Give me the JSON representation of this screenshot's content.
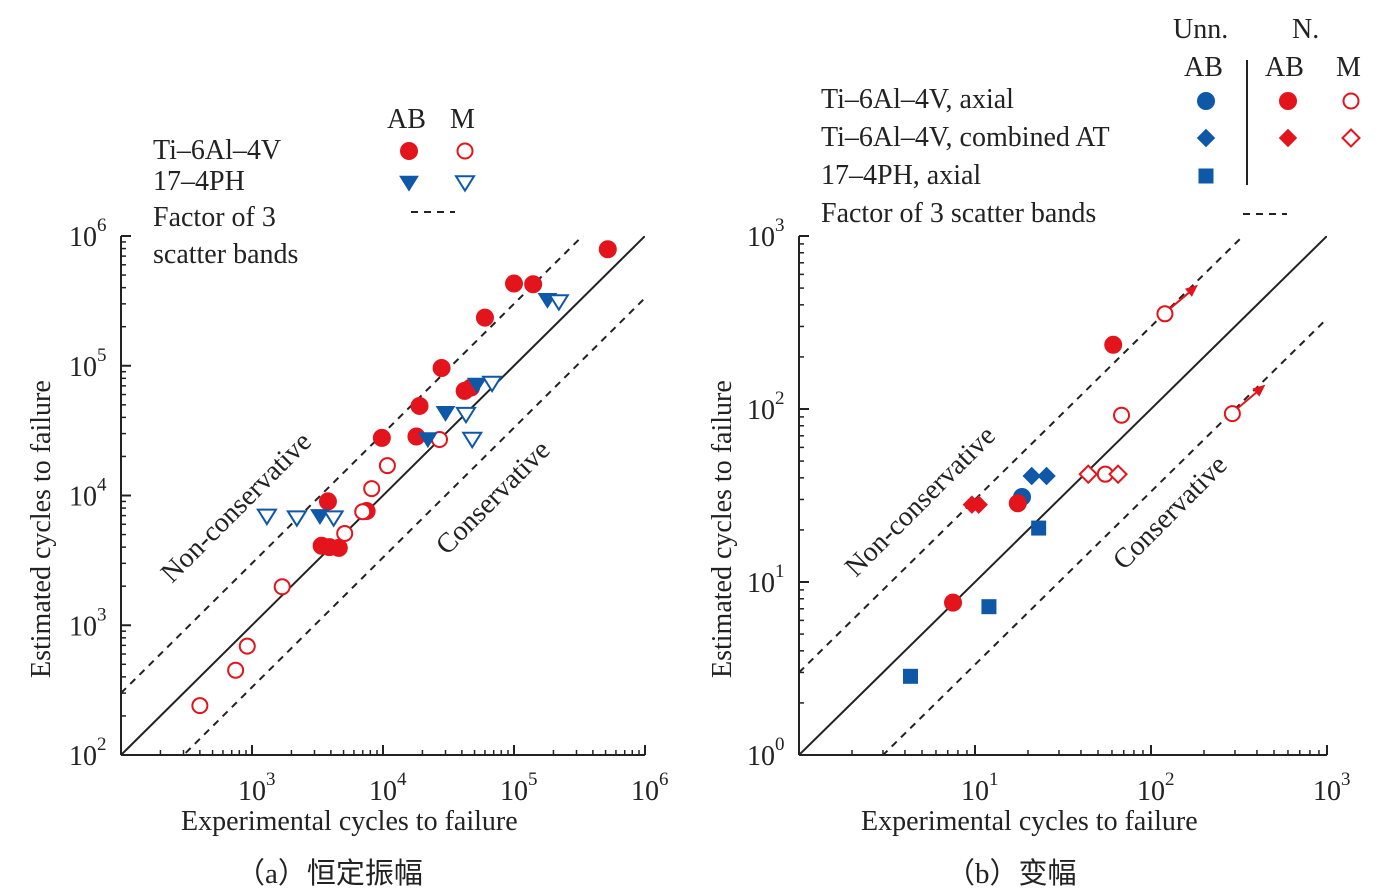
{
  "colors": {
    "red": "#e3141c",
    "blue": "#0f58a8",
    "black": "#222222"
  },
  "chart_data": [
    {
      "type": "scatter",
      "subtitle": "（a）恒定振幅",
      "xlabel": "Experimental cycles to failure",
      "ylabel": "Estimated cycles to failure",
      "xscale": "log",
      "yscale": "log",
      "xlim": [
        100,
        1000000
      ],
      "ylim": [
        100,
        1000000
      ],
      "xtick_labels": [
        {
          "value": 1000,
          "base": "10",
          "exp": "3"
        },
        {
          "value": 10000,
          "base": "10",
          "exp": "4"
        },
        {
          "value": 100000,
          "base": "10",
          "exp": "5"
        },
        {
          "value": 1000000,
          "base": "10",
          "exp": "6"
        }
      ],
      "ytick_labels": [
        {
          "value": 100,
          "base": "10",
          "exp": "2"
        },
        {
          "value": 1000,
          "base": "10",
          "exp": "3"
        },
        {
          "value": 10000,
          "base": "10",
          "exp": "4"
        },
        {
          "value": 100000,
          "base": "10",
          "exp": "5"
        },
        {
          "value": 1000000,
          "base": "10",
          "exp": "6"
        }
      ],
      "legend": {
        "placement": "top-left",
        "col_headers": [
          "AB",
          "M"
        ],
        "rows": [
          {
            "label": "Ti–6Al–4V",
            "markers": [
              "red-circle-filled",
              "red-circle-open"
            ]
          },
          {
            "label": "17–4PH",
            "markers": [
              "blue-triangle-filled",
              "blue-triangle-open"
            ]
          },
          {
            "label": "Factor of 3\nscatter bands",
            "markers": [
              "dashed-line"
            ]
          }
        ]
      },
      "annotations": [
        {
          "text": "Non-conservative",
          "angle": -45
        },
        {
          "text": "Conservative",
          "angle": -45
        }
      ],
      "reference_lines": [
        {
          "name": "1:1",
          "style": "solid",
          "factor": 1
        },
        {
          "style": "dashed",
          "factor": 3
        },
        {
          "style": "dashed",
          "factor": 0.333
        }
      ],
      "series": [
        {
          "name": "Ti–6Al–4V AB",
          "marker": "circle",
          "filled": true,
          "color": "red",
          "points": [
            [
              3800,
              9000
            ],
            [
              3400,
              4100
            ],
            [
              3900,
              4000
            ],
            [
              4600,
              3950
            ],
            [
              19000,
              49000
            ],
            [
              28000,
              96000
            ],
            [
              42000,
              64000
            ],
            [
              47000,
              68000
            ],
            [
              100000,
              430000
            ],
            [
              140000,
              425000
            ],
            [
              520000,
              790000
            ],
            [
              7500,
              7600
            ],
            [
              9800,
              27800
            ],
            [
              18000,
              28500
            ],
            [
              60000,
              235000
            ]
          ]
        },
        {
          "name": "Ti–6Al–4V M",
          "marker": "circle",
          "filled": false,
          "color": "red",
          "points": [
            [
              400,
              240
            ],
            [
              750,
              450
            ],
            [
              920,
              690
            ],
            [
              1700,
              1980
            ],
            [
              5100,
              5100
            ],
            [
              7000,
              7500
            ],
            [
              8200,
              11300
            ],
            [
              10800,
              17000
            ],
            [
              27000,
              27000
            ]
          ]
        },
        {
          "name": "17–4PH AB",
          "marker": "triangle-down",
          "filled": true,
          "color": "blue",
          "points": [
            [
              3300,
              6900
            ],
            [
              22000,
              27000
            ],
            [
              30000,
              43000
            ],
            [
              52000,
              71000
            ],
            [
              180000,
              320000
            ]
          ]
        },
        {
          "name": "17–4PH M",
          "marker": "triangle-down",
          "filled": false,
          "color": "blue",
          "points": [
            [
              1300,
              6900
            ],
            [
              2200,
              6700
            ],
            [
              4200,
              6700
            ],
            [
              43000,
              42000
            ],
            [
              48000,
              27000
            ],
            [
              68000,
              73000
            ],
            [
              220000,
              310000
            ]
          ]
        }
      ]
    },
    {
      "type": "scatter",
      "subtitle": "（b）变幅",
      "xlabel": "Experimental cycles to failure",
      "ylabel": "Estimated cycles to failure",
      "xscale": "log",
      "yscale": "log",
      "xlim": [
        1,
        1000
      ],
      "ylim": [
        1,
        1000
      ],
      "xtick_labels": [
        {
          "value": 10,
          "base": "10",
          "exp": "1"
        },
        {
          "value": 100,
          "base": "10",
          "exp": "2"
        },
        {
          "value": 1000,
          "base": "10",
          "exp": "3"
        }
      ],
      "ytick_labels": [
        {
          "value": 1,
          "base": "10",
          "exp": "0"
        },
        {
          "value": 10,
          "base": "10",
          "exp": "1"
        },
        {
          "value": 100,
          "base": "10",
          "exp": "2"
        },
        {
          "value": 1000,
          "base": "10",
          "exp": "3"
        }
      ],
      "legend": {
        "placement": "top",
        "group_headers": [
          "Unn.",
          "N."
        ],
        "col_headers": [
          "AB",
          "AB",
          "M"
        ],
        "rows": [
          {
            "label": "Ti–6Al–4V, axial",
            "markers": [
              "blue-circle-filled",
              "red-circle-filled",
              "red-circle-open"
            ]
          },
          {
            "label": "Ti–6Al–4V, combined AT",
            "markers": [
              "blue-diamond-filled",
              "red-diamond-filled",
              "red-diamond-open"
            ]
          },
          {
            "label": "17–4PH, axial",
            "markers": [
              "blue-square-filled"
            ]
          },
          {
            "label": "Factor of 3 scatter bands",
            "markers": [
              "dashed-line"
            ]
          }
        ]
      },
      "annotations": [
        {
          "text": "Non-conservative",
          "angle": -45
        },
        {
          "text": "Conservative",
          "angle": -45
        }
      ],
      "reference_lines": [
        {
          "name": "1:1",
          "style": "solid",
          "factor": 1
        },
        {
          "style": "dashed",
          "factor": 3
        },
        {
          "style": "dashed",
          "factor": 0.333
        }
      ],
      "series": [
        {
          "name": "Ti–6Al–4V, axial Unn. AB",
          "marker": "circle",
          "filled": true,
          "color": "blue",
          "points": [
            [
              18.5,
              31
            ]
          ]
        },
        {
          "name": "Ti–6Al–4V, axial N. AB",
          "marker": "circle",
          "filled": true,
          "color": "red",
          "points": [
            [
              7.5,
              7.6
            ],
            [
              17.5,
              28.5
            ],
            [
              61,
              235
            ]
          ]
        },
        {
          "name": "Ti–6Al–4V, axial N. M",
          "marker": "circle",
          "filled": false,
          "color": "red",
          "points": [
            [
              55,
              42
            ],
            [
              68,
              92
            ],
            [
              120,
              355
            ],
            [
              290,
              94
            ]
          ],
          "runouts": [
            [
              120,
              355
            ],
            [
              290,
              94
            ]
          ]
        },
        {
          "name": "Ti–6Al–4V, combined AT Unn. AB",
          "marker": "diamond",
          "filled": true,
          "color": "blue",
          "points": [
            [
              21,
              41
            ],
            [
              25.5,
              41
            ]
          ]
        },
        {
          "name": "Ti–6Al–4V, combined AT N. AB",
          "marker": "diamond",
          "filled": true,
          "color": "red",
          "points": [
            [
              9.6,
              28
            ],
            [
              10.5,
              28
            ]
          ]
        },
        {
          "name": "Ti–6Al–4V, combined AT N. M",
          "marker": "diamond",
          "filled": false,
          "color": "red",
          "points": [
            [
              44,
              42
            ],
            [
              65,
              42
            ]
          ]
        },
        {
          "name": "17–4PH, axial Unn. AB",
          "marker": "square",
          "filled": true,
          "color": "blue",
          "points": [
            [
              4.3,
              2.85
            ],
            [
              12,
              7.2
            ],
            [
              23,
              20.5
            ]
          ]
        }
      ]
    }
  ]
}
